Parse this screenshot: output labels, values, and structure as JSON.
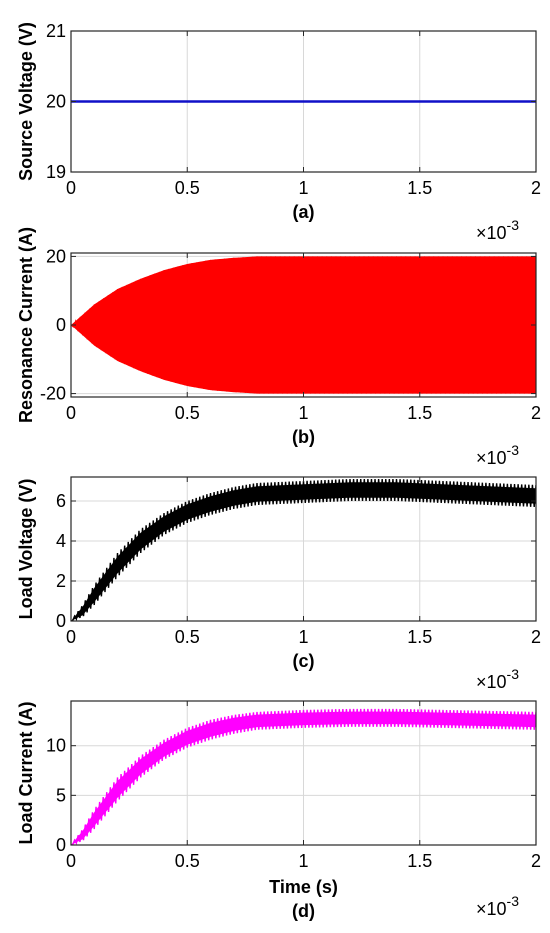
{
  "chart_data": [
    {
      "id": "a",
      "type": "line",
      "caption": "(a)",
      "ylabel": "Source Voltage (V)",
      "xlabel": "",
      "x_multiplier_label": "×10",
      "x_multiplier_exp": "-3",
      "xlim": [
        0,
        2
      ],
      "ylim": [
        19,
        21
      ],
      "xticks": [
        0,
        0.5,
        1,
        1.5,
        2
      ],
      "xtick_labels": [
        "0",
        "0.5",
        "1",
        "1.5",
        "2"
      ],
      "yticks": [
        19,
        20,
        21
      ],
      "ytick_labels": [
        "19",
        "20",
        "21"
      ],
      "grid": true,
      "series": [
        {
          "color": "#1010c8",
          "x": [
            0,
            2
          ],
          "y": [
            20,
            20
          ]
        }
      ]
    },
    {
      "id": "b",
      "type": "line",
      "caption": "(b)",
      "ylabel": "Resonance Current (A)",
      "xlabel": "",
      "x_multiplier_label": "×10",
      "x_multiplier_exp": "-3",
      "xlim": [
        0,
        2
      ],
      "ylim": [
        -21,
        21
      ],
      "xticks": [
        0,
        0.5,
        1,
        1.5,
        2
      ],
      "xtick_labels": [
        "0",
        "0.5",
        "1",
        "1.5",
        "2"
      ],
      "yticks": [
        -20,
        0,
        20
      ],
      "ytick_labels": [
        "-20",
        "0",
        "20"
      ],
      "grid": true,
      "series": [
        {
          "color": "#ff0000",
          "kind": "oscillation_envelope",
          "x": [
            0,
            0.1,
            0.2,
            0.3,
            0.4,
            0.5,
            0.6,
            0.7,
            0.8,
            1.0,
            1.2,
            1.5,
            1.8,
            2.0
          ],
          "y_envelope": [
            0,
            6,
            10.5,
            13.5,
            16,
            17.8,
            19,
            19.6,
            20,
            20,
            20,
            20,
            20,
            20
          ]
        }
      ]
    },
    {
      "id": "c",
      "type": "line",
      "caption": "(c)",
      "ylabel": "Load Voltage (V)",
      "xlabel": "",
      "x_multiplier_label": "×10",
      "x_multiplier_exp": "-3",
      "xlim": [
        0,
        2
      ],
      "ylim": [
        0,
        7.2
      ],
      "xticks": [
        0,
        0.5,
        1,
        1.5,
        2
      ],
      "xtick_labels": [
        "0",
        "0.5",
        "1",
        "1.5",
        "2"
      ],
      "yticks": [
        0,
        2,
        4,
        6
      ],
      "ytick_labels": [
        "0",
        "2",
        "4",
        "6"
      ],
      "grid": true,
      "series": [
        {
          "color": "#000000",
          "kind": "ripple_band",
          "x": [
            0,
            0.05,
            0.1,
            0.2,
            0.3,
            0.4,
            0.5,
            0.6,
            0.7,
            0.8,
            1.0,
            1.2,
            1.4,
            1.6,
            1.8,
            2.0
          ],
          "y_upper": [
            0,
            0.8,
            1.8,
            3.4,
            4.6,
            5.4,
            6.0,
            6.4,
            6.7,
            6.9,
            7.0,
            7.1,
            7.1,
            7.0,
            6.9,
            6.8
          ],
          "y_lower": [
            0,
            0.2,
            0.8,
            2.2,
            3.4,
            4.3,
            4.9,
            5.3,
            5.6,
            5.8,
            5.9,
            6.0,
            6.0,
            5.9,
            5.8,
            5.7
          ]
        }
      ]
    },
    {
      "id": "d",
      "type": "line",
      "caption": "(d)",
      "ylabel": "Load Current (A)",
      "xlabel": "Time (s)",
      "x_multiplier_label": "×10",
      "x_multiplier_exp": "-3",
      "xlim": [
        0,
        2
      ],
      "ylim": [
        0,
        14.5
      ],
      "xticks": [
        0,
        0.5,
        1,
        1.5,
        2
      ],
      "xtick_labels": [
        "0",
        "0.5",
        "1",
        "1.5",
        "2"
      ],
      "yticks": [
        0,
        5,
        10
      ],
      "ytick_labels": [
        "0",
        "5",
        "10"
      ],
      "grid": true,
      "series": [
        {
          "color": "#ff00ff",
          "kind": "ripple_band",
          "x": [
            0,
            0.05,
            0.1,
            0.2,
            0.3,
            0.4,
            0.5,
            0.6,
            0.7,
            0.8,
            1.0,
            1.2,
            1.4,
            1.6,
            1.8,
            2.0
          ],
          "y_upper": [
            0,
            1.6,
            3.6,
            6.8,
            9.0,
            10.6,
            11.8,
            12.6,
            13.1,
            13.4,
            13.6,
            13.7,
            13.7,
            13.6,
            13.5,
            13.4
          ],
          "y_lower": [
            0,
            0.4,
            1.6,
            4.4,
            6.8,
            8.6,
            9.8,
            10.6,
            11.2,
            11.6,
            11.8,
            11.9,
            11.9,
            11.8,
            11.7,
            11.6
          ]
        }
      ]
    }
  ]
}
